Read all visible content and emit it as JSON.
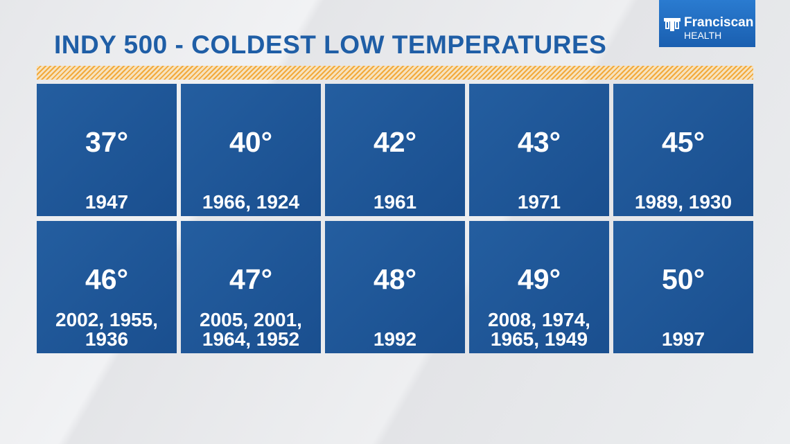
{
  "header": {
    "title": "INDY 500 - COLDEST LOW TEMPERATURES"
  },
  "logo": {
    "name": "Franciscan",
    "subtitle": "HEALTH"
  },
  "tiles": [
    {
      "temperature": "37°",
      "years": "1947"
    },
    {
      "temperature": "40°",
      "years": "1966, 1924"
    },
    {
      "temperature": "42°",
      "years": "1961"
    },
    {
      "temperature": "43°",
      "years": "1971"
    },
    {
      "temperature": "45°",
      "years": "1989, 1930"
    },
    {
      "temperature": "46°",
      "years": "2002, 1955, 1936"
    },
    {
      "temperature": "47°",
      "years": "2005, 2001, 1964, 1952"
    },
    {
      "temperature": "48°",
      "years": "1992"
    },
    {
      "temperature": "49°",
      "years": "2008, 1974, 1965, 1949"
    },
    {
      "temperature": "50°",
      "years": "1997"
    }
  ]
}
